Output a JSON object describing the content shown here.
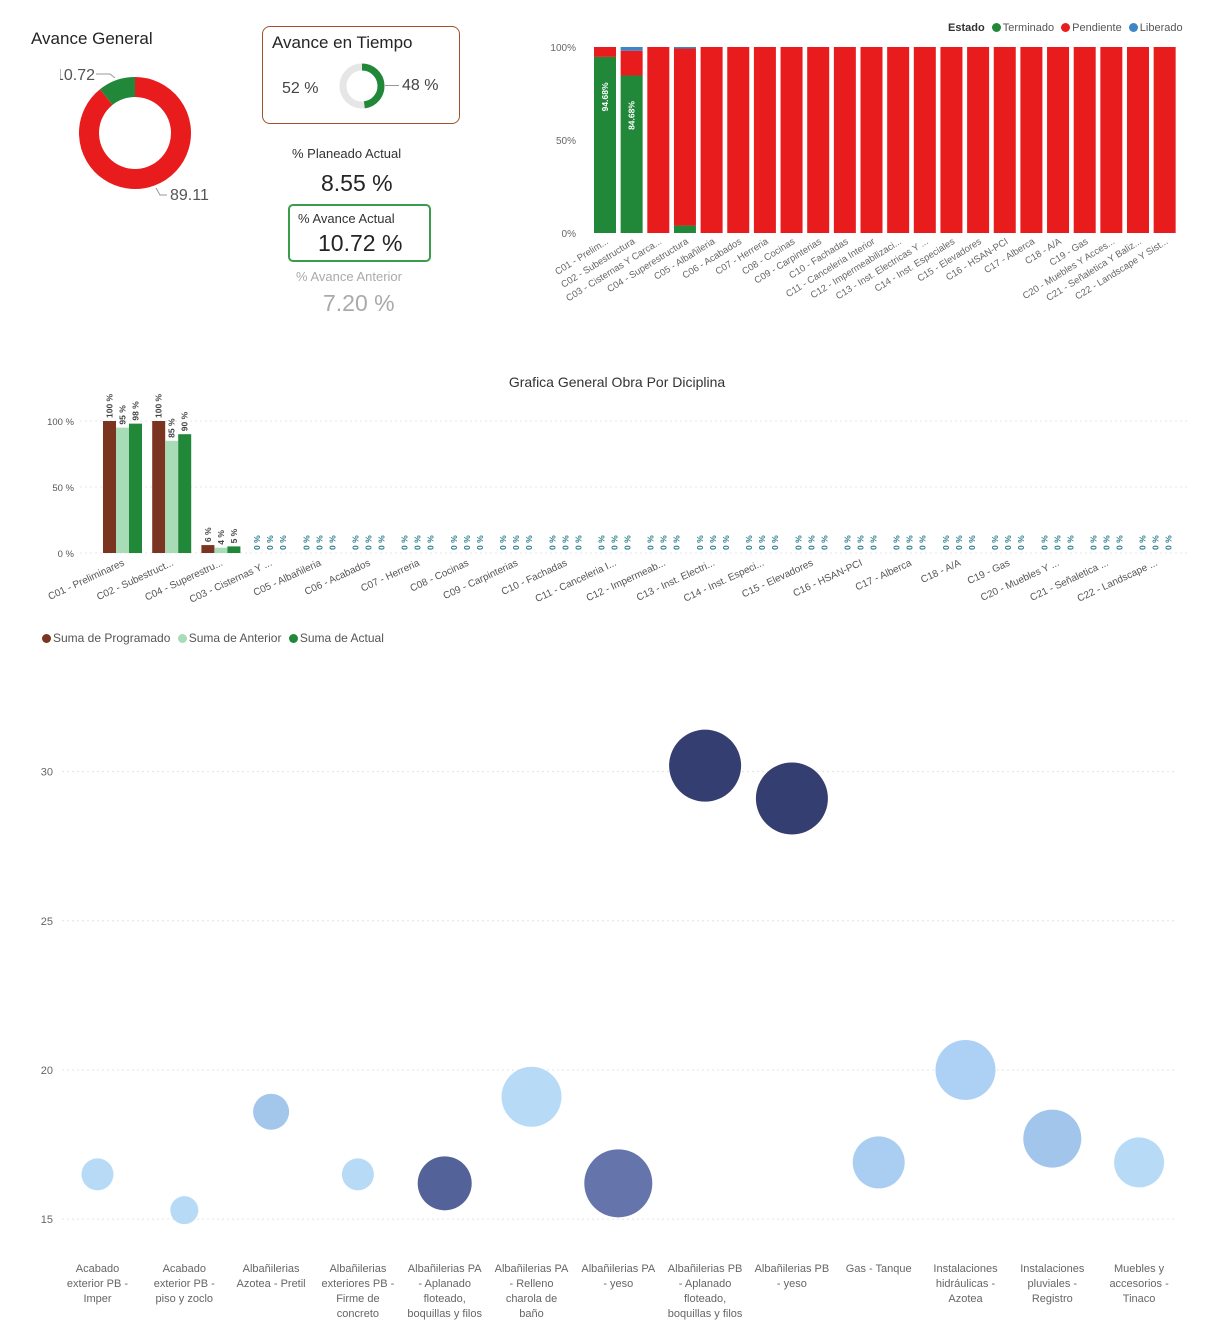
{
  "avance_general": {
    "title": "Avance General",
    "terminado_label": "10.72",
    "pendiente_label": "89.11",
    "terminado_value": 10.72,
    "pendiente_value": 89.11,
    "colors": {
      "terminado": "#21883a",
      "pendiente": "#e81c1c"
    }
  },
  "avance_tiempo": {
    "title": "Avance en Tiempo",
    "left_label": "52 %",
    "right_label": "48 %",
    "elapsed_value": 48,
    "remaining_value": 52
  },
  "planeado": {
    "label": "% Planeado Actual",
    "value": "8.55 %"
  },
  "actual": {
    "label": "% Avance Actual",
    "value": "10.72 %"
  },
  "anterior": {
    "label": "% Avance Anterior",
    "value": "7.20 %"
  },
  "estado_chart": {
    "legend_title": "Estado",
    "legend": [
      {
        "name": "Terminado",
        "color": "#21883a"
      },
      {
        "name": "Pendiente",
        "color": "#e81c1c"
      },
      {
        "name": "Liberado",
        "color": "#3d85c6"
      }
    ],
    "y_ticks": [
      "100%",
      "50%",
      "0%"
    ]
  },
  "chart_data": [
    {
      "type": "bar",
      "stacked": true,
      "percent": true,
      "legend_title": "Estado",
      "categories": [
        "C01 - Prelim...",
        "C02 - Subestructura",
        "C03 - Cisternas Y Carca...",
        "C04 - Superestructura",
        "C05 - Albañileria",
        "C06 - Acabados",
        "C07 - Herreria",
        "C08 - Cocinas",
        "C09 - Carpinterias",
        "C10 - Fachadas",
        "C11 - Canceleria Interior",
        "C12 - Impermeabilizaci...",
        "C13 - Inst. Electricas Y ...",
        "C14 - Inst. Especiales",
        "C15 - Elevadores",
        "C16 - HSAN-PCI",
        "C17 - Alberca",
        "C18 - A/A",
        "C19 - Gas",
        "C20 - Muebles Y Acces...",
        "C21 - Señaletica Y Baliz...",
        "C22 - Landscape Y Sist..."
      ],
      "series": [
        {
          "name": "Terminado",
          "color": "#21883a",
          "values": [
            94.68,
            84.68,
            0,
            4,
            0,
            0,
            0,
            0,
            0,
            0,
            0,
            0,
            0,
            0,
            0,
            0,
            0,
            0,
            0,
            0,
            0,
            0
          ]
        },
        {
          "name": "Pendiente",
          "color": "#e81c1c",
          "values": [
            5.32,
            13.32,
            100,
            95.2,
            100,
            100,
            100,
            100,
            100,
            100,
            100,
            100,
            100,
            100,
            100,
            100,
            100,
            100,
            100,
            100,
            100,
            100
          ]
        },
        {
          "name": "Liberado",
          "color": "#3d85c6",
          "values": [
            0,
            2,
            0,
            0.8,
            0,
            0,
            0,
            0,
            0,
            0,
            0,
            0,
            0,
            0,
            0,
            0,
            0,
            0,
            0,
            0,
            0,
            0
          ]
        }
      ],
      "data_labels": [
        "94.68%",
        "84.68%"
      ],
      "y_ticks": [
        "100%",
        "50%",
        "0%"
      ],
      "ylim": [
        0,
        100
      ]
    },
    {
      "type": "bar",
      "title": "Grafica General Obra Por Diciplina",
      "categories": [
        "C01 - Preliminares",
        "C02 - Subestruct...",
        "C04 - Superestru...",
        "C03 - Cisternas Y ...",
        "C05 - Albañileria",
        "C06 - Acabados",
        "C07 - Herreria",
        "C08 - Cocinas",
        "C09 - Carpinterias",
        "C10 - Fachadas",
        "C11 - Canceleria I...",
        "C12 - Impermeab...",
        "C13 - Inst. Electri...",
        "C14 - Inst. Especi...",
        "C15 - Elevadores",
        "C16 - HSAN-PCI",
        "C17 - Alberca",
        "C18 - A/A",
        "C19 - Gas",
        "C20 - Muebles Y ...",
        "C21 - Señaletica ...",
        "C22 - Landscape ..."
      ],
      "series": [
        {
          "name": "Suma de Programado",
          "color": "#7b3420",
          "values": [
            100,
            100,
            6,
            0,
            0,
            0,
            0,
            0,
            0,
            0,
            0,
            0,
            0,
            0,
            0,
            0,
            0,
            0,
            0,
            0,
            0,
            0
          ]
        },
        {
          "name": "Suma de Anterior",
          "color": "#a8dcb6",
          "values": [
            95,
            85,
            4,
            0,
            0,
            0,
            0,
            0,
            0,
            0,
            0,
            0,
            0,
            0,
            0,
            0,
            0,
            0,
            0,
            0,
            0,
            0
          ]
        },
        {
          "name": "Suma de Actual",
          "color": "#21883a",
          "values": [
            98,
            90,
            5,
            0,
            0,
            0,
            0,
            0,
            0,
            0,
            0,
            0,
            0,
            0,
            0,
            0,
            0,
            0,
            0,
            0,
            0,
            0
          ]
        }
      ],
      "y_ticks": [
        "100 %",
        "50 %",
        "0 %"
      ],
      "ylim": [
        0,
        100
      ]
    },
    {
      "type": "scatter",
      "x": [
        "Acabado exterior PB - Imper",
        "Acabado exterior PB - piso y zoclo",
        "Albañilerias Azotea - Pretil",
        "Albañilerias exteriores PB - Firme de concreto",
        "Albañilerias PA - Aplanado floteado, boquillas y filos",
        "Albañilerias PA - Relleno charola de baño",
        "Albañilerias PA - yeso",
        "Albañilerias PB - Aplanado floteado, boquillas y filos",
        "Albañilerias PB - yeso",
        "Gas - Tanque",
        "Instalaciones hidráulicas - Azotea",
        "Instalaciones pluviales - Registro",
        "Muebles y accesorios - Tinaco"
      ],
      "x_labels": [
        [
          "Acabado",
          "exterior PB -",
          "Imper"
        ],
        [
          "Acabado",
          "exterior PB -",
          "piso y zoclo"
        ],
        [
          "Albañilerias",
          "Azotea - Pretil"
        ],
        [
          "Albañilerias",
          "exteriores PB -",
          "Firme de",
          "concreto"
        ],
        [
          "Albañilerias PA",
          "- Aplanado",
          "floteado,",
          "boquillas y filos"
        ],
        [
          "Albañilerias PA",
          "- Relleno",
          "charola de",
          "baño"
        ],
        [
          "Albañilerias PA",
          "- yeso"
        ],
        [
          "Albañilerias PB",
          "- Aplanado",
          "floteado,",
          "boquillas y filos"
        ],
        [
          "Albañilerias PB",
          "- yeso"
        ],
        [
          "Gas - Tanque"
        ],
        [
          "Instalaciones",
          "hidráulicas -",
          "Azotea"
        ],
        [
          "Instalaciones",
          "pluviales -",
          "Registro"
        ],
        [
          "Muebles y",
          "accesorios -",
          "Tinaco"
        ]
      ],
      "y": [
        16.5,
        15.3,
        18.6,
        16.5,
        16.2,
        19.1,
        16.2,
        30.2,
        29.1,
        16.9,
        20.0,
        17.7,
        16.9
      ],
      "size": [
        16,
        14,
        18,
        16,
        27,
        30,
        34,
        36,
        36,
        26,
        30,
        29,
        25
      ],
      "colors": [
        "#b3d8f7",
        "#b3d8f7",
        "#9ec3ea",
        "#b3d8f7",
        "#4a5a92",
        "#b3d8f7",
        "#5d6ea6",
        "#2a3468",
        "#2a3468",
        "#a4cbf1",
        "#a9cff3",
        "#9cc2ea",
        "#b3d8f7"
      ],
      "y_ticks": [
        15,
        20,
        25,
        30
      ],
      "ylim": [
        14.3,
        32.4
      ]
    }
  ],
  "bar_legend": [
    {
      "name": "Suma de Programado",
      "color": "#7b3420"
    },
    {
      "name": "Suma de Anterior",
      "color": "#a8dcb6"
    },
    {
      "name": "Suma de Actual",
      "color": "#21883a"
    }
  ]
}
